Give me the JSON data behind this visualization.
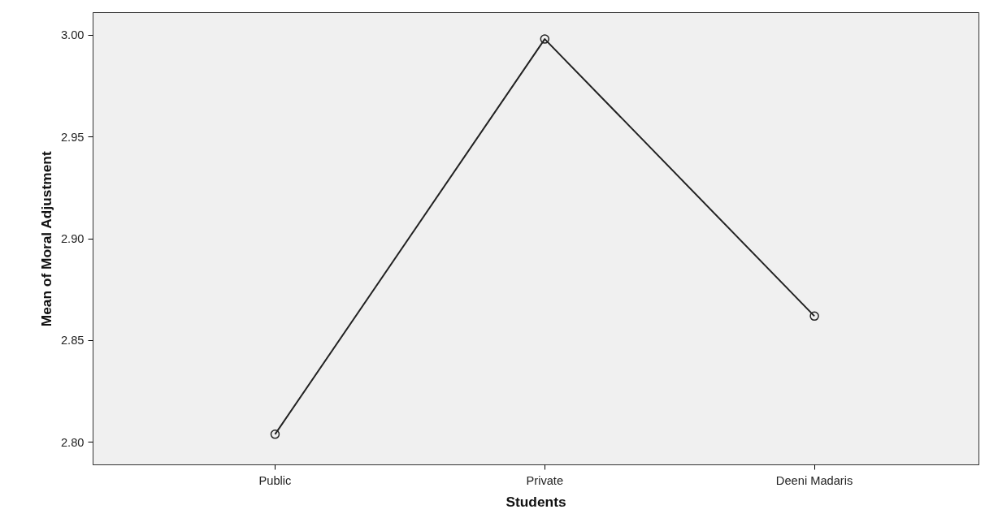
{
  "chart_data": {
    "type": "line",
    "xlabel": "Students",
    "ylabel": "Mean of Moral Adjustment",
    "categories": [
      "Public",
      "Private",
      "Deeni Madaris"
    ],
    "series": [
      {
        "color": "#222222",
        "values": [
          2.804,
          2.998,
          2.862
        ]
      }
    ],
    "ylim": [
      2.789,
      3.011
    ],
    "yticks": [
      {
        "value": 2.8,
        "label": "2.80"
      },
      {
        "value": 2.85,
        "label": "2.85"
      },
      {
        "value": 2.9,
        "label": "2.90"
      },
      {
        "value": 2.95,
        "label": "2.95"
      },
      {
        "value": 3.0,
        "label": "3.00"
      }
    ],
    "grid": false,
    "marker": "circle",
    "line_style": "solid"
  }
}
